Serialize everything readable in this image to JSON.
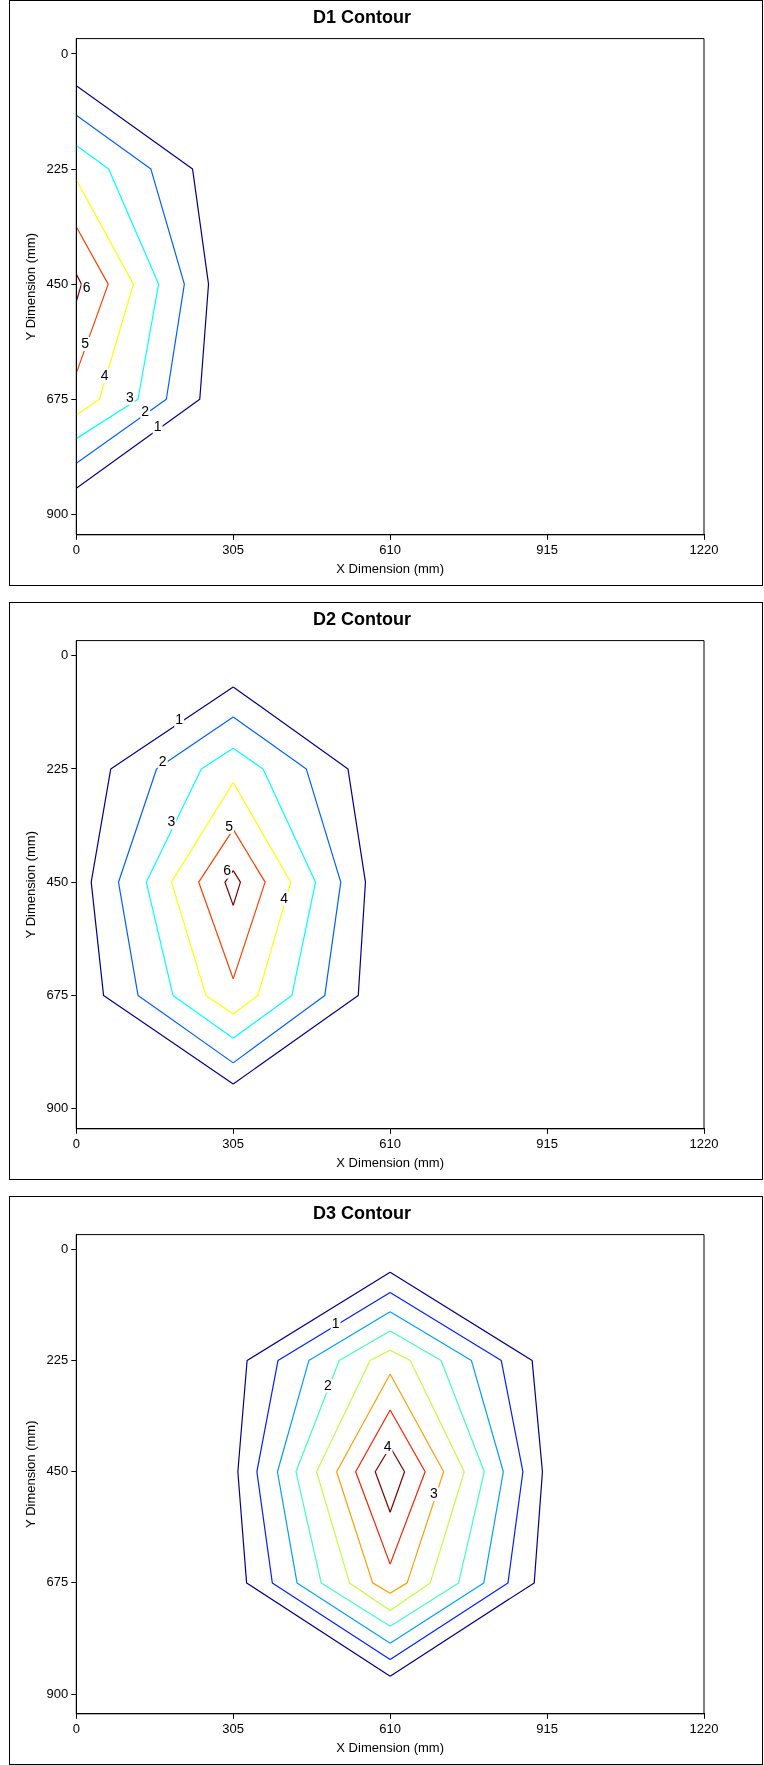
{
  "chart_data": [
    {
      "type": "line",
      "title": "D1 Contour",
      "xlabel": "X Dimension (mm)",
      "ylabel": "Y Dimension (mm)",
      "xlim": [
        0,
        1220
      ],
      "xticks": [
        0,
        305,
        610,
        915,
        1220
      ],
      "ylim": [
        940,
        -30
      ],
      "yticks": [
        0,
        225,
        450,
        675,
        900
      ],
      "marker": "none",
      "line_style": "solid",
      "series": [
        {
          "color": "#00008f",
          "x": [
            0,
            226,
            257,
            240,
            0
          ],
          "values": [
            62,
            225,
            450,
            675,
            849
          ]
        },
        {
          "color": "#0060ff",
          "x": [
            0,
            145,
            210,
            175,
            0
          ],
          "values": [
            120,
            225,
            450,
            675,
            800
          ]
        },
        {
          "color": "#00ffff",
          "x": [
            0,
            63,
            160,
            120,
            0
          ],
          "values": [
            179,
            225,
            450,
            675,
            752
          ]
        },
        {
          "color": "#ffff00",
          "x": [
            0,
            111,
            45,
            0
          ],
          "values": [
            246,
            450,
            675,
            706
          ]
        },
        {
          "color": "#ff4000",
          "x": [
            0,
            62,
            0
          ],
          "values": [
            338,
            450,
            624
          ]
        },
        {
          "color": "#800000",
          "x": [
            0,
            10,
            0
          ],
          "values": [
            430,
            450,
            484
          ]
        }
      ],
      "annotations": [
        {
          "text": "1",
          "x": 158,
          "y": 730
        },
        {
          "text": "2",
          "x": 134,
          "y": 701
        },
        {
          "text": "3",
          "x": 104,
          "y": 672
        },
        {
          "text": "4",
          "x": 55,
          "y": 629
        },
        {
          "text": "5",
          "x": 17,
          "y": 567
        },
        {
          "text": "6",
          "x": 20,
          "y": 457
        }
      ]
    },
    {
      "type": "line",
      "title": "D2 Contour",
      "xlabel": "X Dimension (mm)",
      "ylabel": "Y Dimension (mm)",
      "xlim": [
        0,
        1220
      ],
      "xticks": [
        0,
        305,
        610,
        915,
        1220
      ],
      "ylim": [
        940,
        -30
      ],
      "yticks": [
        0,
        225,
        450,
        675,
        900
      ],
      "marker": "none",
      "line_style": "solid",
      "series": [
        {
          "color": "#00008f",
          "x": [
            305,
            528,
            562,
            548,
            305
          ],
          "values": [
            62,
            225,
            450,
            675,
            851
          ]
        },
        {
          "color": "#00008f",
          "x": [
            305,
            53,
            29,
            67,
            305
          ],
          "values": [
            851,
            675,
            450,
            225,
            62
          ]
        },
        {
          "color": "#0060ff",
          "x": [
            305,
            447,
            514,
            483,
            305
          ],
          "values": [
            122,
            225,
            450,
            675,
            809
          ]
        },
        {
          "color": "#0060ff",
          "x": [
            305,
            120,
            82,
            156,
            305
          ],
          "values": [
            809,
            675,
            450,
            225,
            122
          ]
        },
        {
          "color": "#00ffff",
          "x": [
            305,
            363,
            465,
            419,
            305
          ],
          "values": [
            184,
            225,
            450,
            675,
            760
          ]
        },
        {
          "color": "#00ffff",
          "x": [
            305,
            188,
            136,
            243,
            305
          ],
          "values": [
            760,
            675,
            450,
            225,
            184
          ]
        },
        {
          "color": "#ffff00",
          "x": [
            305,
            417,
            353,
            305
          ],
          "values": [
            252,
            450,
            675,
            712
          ]
        },
        {
          "color": "#ffff00",
          "x": [
            305,
            252,
            185,
            305
          ],
          "values": [
            712,
            675,
            450,
            252
          ]
        },
        {
          "color": "#ff4000",
          "x": [
            305,
            367,
            305
          ],
          "values": [
            345,
            450,
            642
          ]
        },
        {
          "color": "#ff4000",
          "x": [
            305,
            238,
            305
          ],
          "values": [
            642,
            450,
            345
          ]
        },
        {
          "color": "#800000",
          "x": [
            305,
            319,
            305
          ],
          "values": [
            427,
            450,
            496
          ]
        },
        {
          "color": "#800000",
          "x": [
            305,
            289,
            305
          ],
          "values": [
            496,
            450,
            427
          ]
        }
      ],
      "annotations": [
        {
          "text": "1",
          "x": 200,
          "y": 129
        },
        {
          "text": "2",
          "x": 168,
          "y": 212
        },
        {
          "text": "3",
          "x": 185,
          "y": 331
        },
        {
          "text": "4",
          "x": 404,
          "y": 483
        },
        {
          "text": "5",
          "x": 297,
          "y": 340
        },
        {
          "text": "6",
          "x": 293,
          "y": 429
        }
      ]
    },
    {
      "type": "line",
      "title": "D3 Contour",
      "xlabel": "X Dimension (mm)",
      "ylabel": "Y Dimension (mm)",
      "xlim": [
        0,
        1220
      ],
      "xticks": [
        0,
        305,
        610,
        915,
        1220
      ],
      "ylim": [
        940,
        -30
      ],
      "yticks": [
        0,
        225,
        450,
        675,
        900
      ],
      "marker": "none",
      "line_style": "solid",
      "series": [
        {
          "color": "#00008f",
          "x": [
            610,
            886,
            906,
            890,
            610
          ],
          "values": [
            46,
            225,
            450,
            675,
            864
          ]
        },
        {
          "color": "#00008f",
          "x": [
            610,
            331,
            314,
            332,
            610
          ],
          "values": [
            864,
            675,
            450,
            225,
            46
          ]
        },
        {
          "color": "#0020ff",
          "x": [
            610,
            826,
            868,
            839,
            610
          ],
          "values": [
            87,
            225,
            450,
            675,
            830
          ]
        },
        {
          "color": "#0020ff",
          "x": [
            610,
            381,
            351,
            392,
            610
          ],
          "values": [
            830,
            675,
            450,
            225,
            87
          ]
        },
        {
          "color": "#00a0ff",
          "x": [
            610,
            768,
            830,
            792,
            610
          ],
          "values": [
            126,
            225,
            450,
            675,
            797
          ]
        },
        {
          "color": "#00a0ff",
          "x": [
            610,
            429,
            391,
            452,
            610
          ],
          "values": [
            797,
            675,
            450,
            225,
            126
          ]
        },
        {
          "color": "#40ffbf",
          "x": [
            610,
            709,
            793,
            743,
            610
          ],
          "values": [
            165,
            225,
            450,
            675,
            763
          ]
        },
        {
          "color": "#40ffbf",
          "x": [
            610,
            476,
            427,
            511,
            610
          ],
          "values": [
            763,
            675,
            450,
            225,
            165
          ]
        },
        {
          "color": "#bfff40",
          "x": [
            610,
            649,
            754,
            688,
            610
          ],
          "values": [
            204,
            225,
            450,
            675,
            731
          ]
        },
        {
          "color": "#bfff40",
          "x": [
            610,
            531,
            467,
            571,
            610
          ],
          "values": [
            731,
            675,
            450,
            225,
            204
          ]
        },
        {
          "color": "#ff9f00",
          "x": [
            610,
            714,
            643,
            610
          ],
          "values": [
            252,
            450,
            675,
            696
          ]
        },
        {
          "color": "#ff9f00",
          "x": [
            610,
            576,
            506,
            610
          ],
          "values": [
            696,
            675,
            450,
            252
          ]
        },
        {
          "color": "#ff2000",
          "x": [
            610,
            678,
            610
          ],
          "values": [
            325,
            450,
            637
          ]
        },
        {
          "color": "#ff2000",
          "x": [
            610,
            543,
            610
          ],
          "values": [
            637,
            450,
            325
          ]
        },
        {
          "color": "#800000",
          "x": [
            610,
            638,
            610
          ],
          "values": [
            400,
            450,
            532
          ]
        },
        {
          "color": "#800000",
          "x": [
            610,
            581,
            610
          ],
          "values": [
            532,
            450,
            400
          ]
        }
      ],
      "annotations": [
        {
          "text": "1",
          "x": 504,
          "y": 152
        },
        {
          "text": "2",
          "x": 489,
          "y": 276
        },
        {
          "text": "3",
          "x": 695,
          "y": 495
        },
        {
          "text": "4",
          "x": 605,
          "y": 400
        }
      ]
    }
  ]
}
